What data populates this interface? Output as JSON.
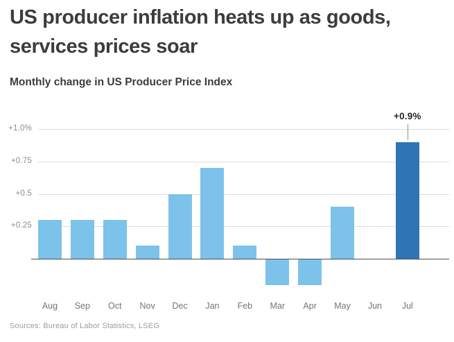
{
  "header": {
    "title_lines": [
      "US producer inflation heats up as goods,",
      "services prices soar"
    ],
    "subtitle": "Monthly change in US Producer Price Index"
  },
  "footer": {
    "source": "Sources: Bureau of Labor Statistics, LSEG"
  },
  "colors": {
    "bar_default": "#7DC2EA",
    "bar_highlight": "#2E75B6",
    "gridline": "#DCDCDC",
    "zero_axis": "#4D4D4D",
    "tick_label": "#8C8C8C",
    "month_label": "#757575",
    "annotation_text": "#262626",
    "leader_line": "#8C8C8C",
    "title_text": "#3C3C3C",
    "source_text": "#9B9B9B"
  },
  "chart_data": {
    "type": "bar",
    "title": "Monthly change in US Producer Price Index",
    "categories": [
      "Aug",
      "Sep",
      "Oct",
      "Nov",
      "Dec",
      "Jan",
      "Feb",
      "Mar",
      "Apr",
      "May",
      "Jun",
      "Jul"
    ],
    "values": [
      0.3,
      0.3,
      0.3,
      0.1,
      0.5,
      0.7,
      0.1,
      -0.2,
      -0.2,
      0.4,
      0,
      0.9
    ],
    "unit": "%",
    "highlight_index": 11,
    "annotation": {
      "text": "+0.9%",
      "category": "Jul"
    },
    "yticks": [
      {
        "value": 0.25,
        "label": "+0.25"
      },
      {
        "value": 0.5,
        "label": "+0.5"
      },
      {
        "value": 0.75,
        "label": "+0.75"
      },
      {
        "value": 1.0,
        "label": "+1.0%"
      }
    ],
    "ylim": [
      -0.3,
      1.1
    ],
    "grid": true,
    "legend": false
  }
}
